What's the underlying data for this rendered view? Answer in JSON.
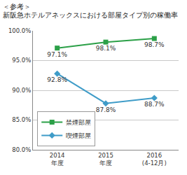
{
  "chart_data": {
    "type": "line",
    "title": "＜参考＞",
    "subtitle": "新阪急ホテルアネックスにおける部屋タイプ別の稼働率",
    "categories": [
      "2014\n年度",
      "2015\n年度",
      "2016\n(4-12月)"
    ],
    "series": [
      {
        "name": "禁煙部屋",
        "color": "#2ca048",
        "marker": "square",
        "line_style": "solid",
        "values": [
          97.1,
          98.1,
          98.7
        ],
        "value_labels": [
          "97.1%",
          "98.1%",
          "98.7%"
        ]
      },
      {
        "name": "喫煙部屋",
        "color": "#3f9cc8",
        "marker": "diamond",
        "line_style": "solid",
        "values": [
          92.8,
          87.8,
          88.7
        ],
        "value_labels": [
          "92.8%",
          "87.8%",
          "88.7%"
        ]
      }
    ],
    "ylim": [
      80,
      100
    ],
    "yticks": [
      {
        "value": 80,
        "label": "80.0%"
      },
      {
        "value": 85,
        "label": "85.0%"
      },
      {
        "value": 90,
        "label": "90.0%"
      },
      {
        "value": 95,
        "label": "95.0%"
      },
      {
        "value": 100,
        "label": "100.0%"
      }
    ],
    "grid": true,
    "data_labels": true,
    "legend": "lower left"
  }
}
